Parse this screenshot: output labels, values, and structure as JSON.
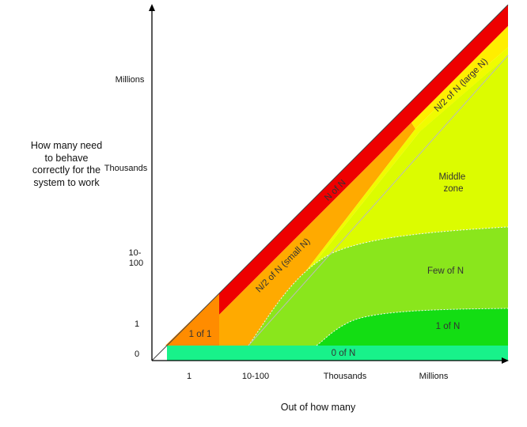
{
  "axes": {
    "y_title": "How many need to behave correctly for the system to work",
    "x_title": "Out of how many",
    "y_ticks": [
      "Millions",
      "Thousands",
      "10-\n100",
      "1",
      "0"
    ],
    "x_ticks": [
      "1",
      "10-100",
      "Thousands",
      "Millions"
    ]
  },
  "zones": [
    {
      "id": "n-of-n",
      "label": "N of N",
      "color": "#ee0000"
    },
    {
      "id": "one-of-one",
      "label": "1 of 1",
      "color": "#ff8c00"
    },
    {
      "id": "half-small",
      "label": "N/2 of N (small N)",
      "color": "#ffaa00"
    },
    {
      "id": "half-large",
      "label": "N/2 of N (large N)",
      "color": "#ffee00"
    },
    {
      "id": "middle",
      "label": "Middle\nzone",
      "color": "#dcfc00"
    },
    {
      "id": "few-of-n",
      "label": "Few of N",
      "color": "#8ae61c"
    },
    {
      "id": "one-of-n",
      "label": "1 of N",
      "color": "#13dd13"
    },
    {
      "id": "zero-of-n",
      "label": "0 of N",
      "color": "#18f28a"
    }
  ],
  "colors": {
    "axis": "#000000",
    "background": "#ffffff",
    "yellow_green_band": "#f0fc00",
    "boundary_line": "#bbbbbb"
  }
}
